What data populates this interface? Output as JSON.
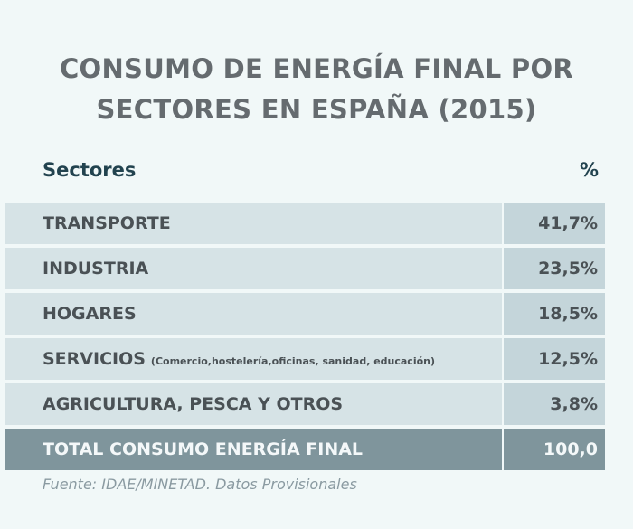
{
  "title": {
    "line1": "CONSUMO DE ENERGÍA FINAL POR",
    "line2": "SECTORES EN ESPAÑA (2015)"
  },
  "table": {
    "header_sector": "Sectores",
    "header_percent": "%",
    "rows": [
      {
        "sector": "TRANSPORTE",
        "note": "",
        "value": "41,7%"
      },
      {
        "sector": "INDUSTRIA",
        "note": "",
        "value": "23,5%"
      },
      {
        "sector": "HOGARES",
        "note": "",
        "value": "18,5%"
      },
      {
        "sector": "SERVICIOS",
        "note": "(Comercio,hostelería,oficinas, sanidad, educación)",
        "value": "12,5%"
      },
      {
        "sector": "AGRICULTURA, PESCA Y OTROS",
        "note": "",
        "value": "3,8%"
      }
    ],
    "total": {
      "label": "TOTAL CONSUMO ENERGÍA FINAL",
      "value": "100,0"
    }
  },
  "source": "Fuente: IDAE/MINETAD. Datos Provisionales",
  "colors": {
    "background": "#f1f8f8",
    "title": "#656b6f",
    "header": "#22434f",
    "row_bg": "#d6e3e6",
    "value_bg": "#c4d5da",
    "total_bg": "#7f959c"
  }
}
